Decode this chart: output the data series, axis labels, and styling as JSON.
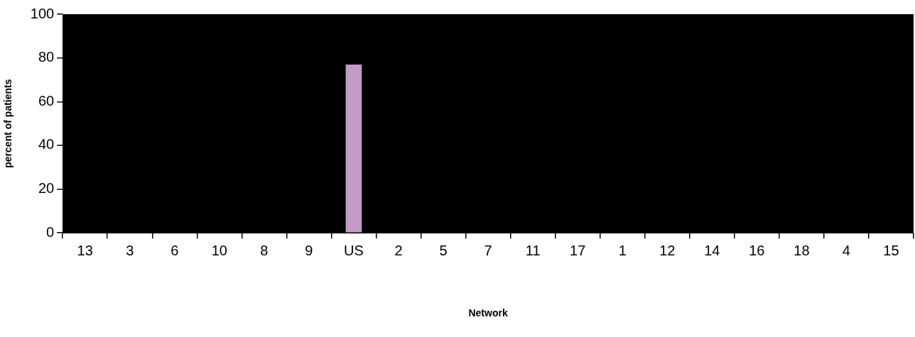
{
  "chart_data": {
    "type": "bar",
    "xlabel": "Network",
    "ylabel": "percent of patients",
    "categories": [
      "13",
      "3",
      "6",
      "10",
      "8",
      "9",
      "US",
      "2",
      "5",
      "7",
      "11",
      "17",
      "1",
      "12",
      "14",
      "16",
      "18",
      "4",
      "15"
    ],
    "series": [
      {
        "color": "#c49ac6",
        "values": [
          null,
          null,
          null,
          null,
          null,
          null,
          77,
          null,
          null,
          null,
          null,
          null,
          null,
          null,
          null,
          null,
          null,
          null,
          null
        ]
      }
    ],
    "ylim": [
      0,
      100
    ],
    "yticks": [
      0,
      20,
      40,
      60,
      80,
      100
    ],
    "grid": false,
    "legend": false
  }
}
